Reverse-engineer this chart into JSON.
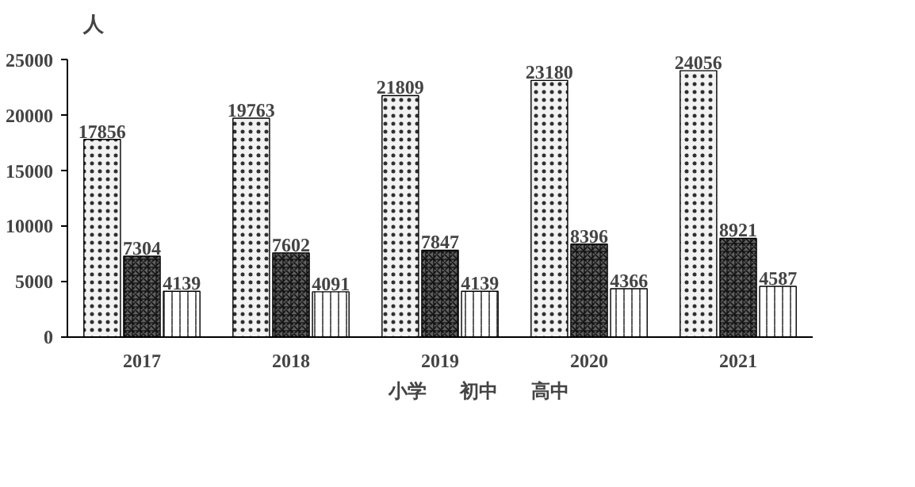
{
  "chart_data": {
    "type": "bar",
    "ylabel": "人",
    "categories": [
      "2017",
      "2018",
      "2019",
      "2020",
      "2021"
    ],
    "series": [
      {
        "name": "小学",
        "color": "#f2f2f2",
        "values": [
          17856,
          19763,
          21809,
          23180,
          24056
        ]
      },
      {
        "name": "初中",
        "color": "#606060",
        "values": [
          7304,
          7602,
          7847,
          8396,
          8921
        ]
      },
      {
        "name": "高中",
        "color": "#ffffff",
        "values": [
          4139,
          4091,
          4139,
          4366,
          4587
        ]
      }
    ],
    "ylim": [
      0,
      25000
    ],
    "yticks": [
      0,
      5000,
      10000,
      15000,
      20000,
      25000
    ],
    "grid": false,
    "legend": "bottom",
    "data_labels": true
  }
}
